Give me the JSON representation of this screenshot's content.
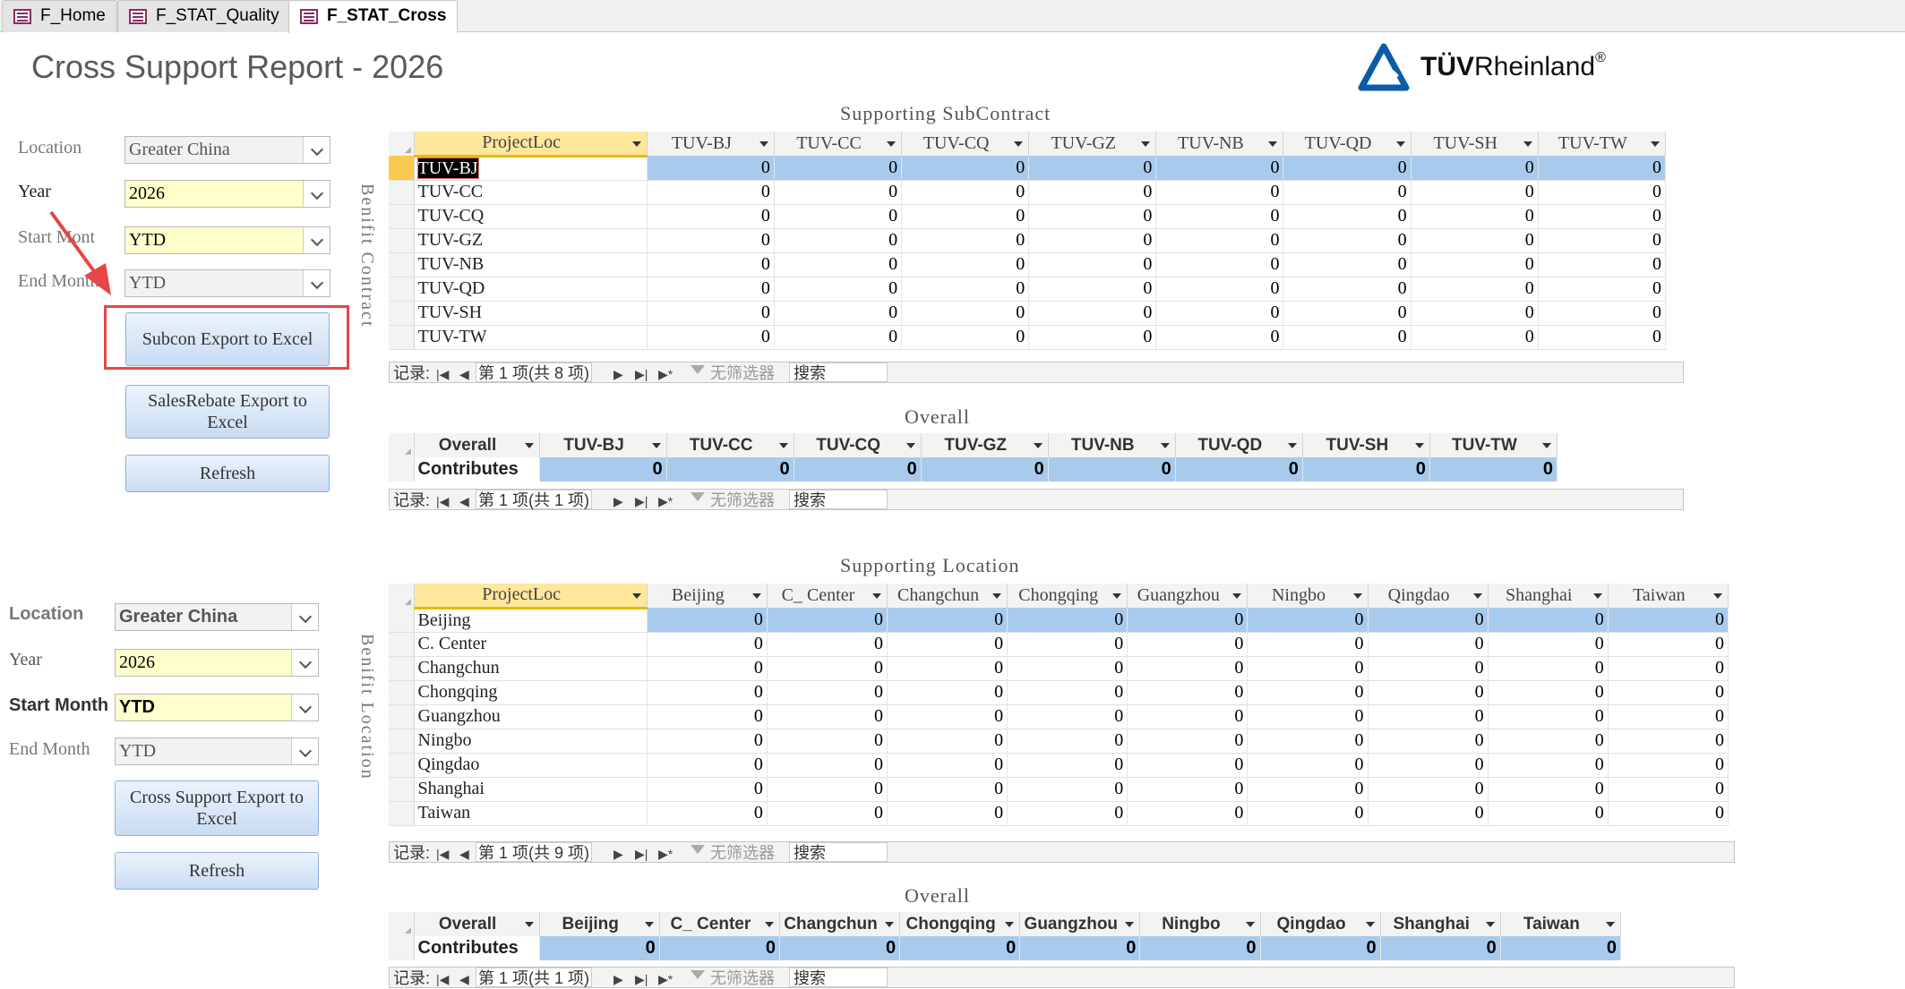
{
  "tabs": [
    {
      "label": "F_Home",
      "active": false
    },
    {
      "label": "F_STAT_Quality",
      "active": false
    },
    {
      "label": "F_STAT_Cross",
      "active": true
    }
  ],
  "header": {
    "title": "Cross Support Report -  2026",
    "logo_bold": "TÜV",
    "logo_text": "Rheinland",
    "logo_reg": "®",
    "logo_color": "#0a5ca8"
  },
  "form_top": {
    "location_label": "Location",
    "location_value": "Greater China",
    "year_label": "Year",
    "year_value": "2026",
    "start_label": "Start Mont",
    "start_value": "YTD",
    "end_label": "End Month",
    "end_value": "YTD",
    "subcon_button": "Subcon Export to Excel",
    "salesrebate_button": "SalesRebate Export to Excel",
    "refresh_button": "Refresh"
  },
  "form_bottom": {
    "location_label": "Location",
    "location_value": "Greater China",
    "year_label": "Year",
    "year_value": "2026",
    "start_label": "Start Month",
    "start_value": "YTD",
    "end_label": "End Month",
    "end_value": "YTD",
    "cross_button": "Cross Support Export to Excel",
    "refresh_button": "Refresh"
  },
  "captions": {
    "benifit_contract": "Benifit Contract",
    "benifit_location": "Benifit Location"
  },
  "subcontract": {
    "title": "Supporting SubContract",
    "columns": [
      "ProjectLoc",
      "TUV-BJ",
      "TUV-CC",
      "TUV-CQ",
      "TUV-GZ",
      "TUV-NB",
      "TUV-QD",
      "TUV-SH",
      "TUV-TW"
    ],
    "rows": [
      {
        "loc": "TUV-BJ",
        "values": [
          "0",
          "0",
          "0",
          "0",
          "0",
          "0",
          "0",
          "0"
        ]
      },
      {
        "loc": "TUV-CC",
        "values": [
          "0",
          "0",
          "0",
          "0",
          "0",
          "0",
          "0",
          "0"
        ]
      },
      {
        "loc": "TUV-CQ",
        "values": [
          "0",
          "0",
          "0",
          "0",
          "0",
          "0",
          "0",
          "0"
        ]
      },
      {
        "loc": "TUV-GZ",
        "values": [
          "0",
          "0",
          "0",
          "0",
          "0",
          "0",
          "0",
          "0"
        ]
      },
      {
        "loc": "TUV-NB",
        "values": [
          "0",
          "0",
          "0",
          "0",
          "0",
          "0",
          "0",
          "0"
        ]
      },
      {
        "loc": "TUV-QD",
        "values": [
          "0",
          "0",
          "0",
          "0",
          "0",
          "0",
          "0",
          "0"
        ]
      },
      {
        "loc": "TUV-SH",
        "values": [
          "0",
          "0",
          "0",
          "0",
          "0",
          "0",
          "0",
          "0"
        ]
      },
      {
        "loc": "TUV-TW",
        "values": [
          "0",
          "0",
          "0",
          "0",
          "0",
          "0",
          "0",
          "0"
        ]
      }
    ],
    "nav": {
      "record_label": "记录:",
      "position": "第 1 项(共 8 项)",
      "no_filter": "无筛选器",
      "search": "搜索"
    }
  },
  "overall1": {
    "title": "Overall",
    "columns": [
      "Overall",
      "TUV-BJ",
      "TUV-CC",
      "TUV-CQ",
      "TUV-GZ",
      "TUV-NB",
      "TUV-QD",
      "TUV-SH",
      "TUV-TW"
    ],
    "row_label": "Contributes",
    "values": [
      "0",
      "0",
      "0",
      "0",
      "0",
      "0",
      "0",
      "0"
    ],
    "nav": {
      "record_label": "记录:",
      "position": "第 1 项(共 1 项)",
      "no_filter": "无筛选器",
      "search": "搜索"
    }
  },
  "location": {
    "title": "Supporting Location",
    "columns": [
      "ProjectLoc",
      "Beijing",
      "C_ Center",
      "Changchun",
      "Chongqing",
      "Guangzhou",
      "Ningbo",
      "Qingdao",
      "Shanghai",
      "Taiwan"
    ],
    "rows": [
      {
        "loc": "Beijing",
        "values": [
          "0",
          "0",
          "0",
          "0",
          "0",
          "0",
          "0",
          "0",
          "0"
        ]
      },
      {
        "loc": "C. Center",
        "values": [
          "0",
          "0",
          "0",
          "0",
          "0",
          "0",
          "0",
          "0",
          "0"
        ]
      },
      {
        "loc": "Changchun",
        "values": [
          "0",
          "0",
          "0",
          "0",
          "0",
          "0",
          "0",
          "0",
          "0"
        ]
      },
      {
        "loc": "Chongqing",
        "values": [
          "0",
          "0",
          "0",
          "0",
          "0",
          "0",
          "0",
          "0",
          "0"
        ]
      },
      {
        "loc": "Guangzhou",
        "values": [
          "0",
          "0",
          "0",
          "0",
          "0",
          "0",
          "0",
          "0",
          "0"
        ]
      },
      {
        "loc": "Ningbo",
        "values": [
          "0",
          "0",
          "0",
          "0",
          "0",
          "0",
          "0",
          "0",
          "0"
        ]
      },
      {
        "loc": "Qingdao",
        "values": [
          "0",
          "0",
          "0",
          "0",
          "0",
          "0",
          "0",
          "0",
          "0"
        ]
      },
      {
        "loc": "Shanghai",
        "values": [
          "0",
          "0",
          "0",
          "0",
          "0",
          "0",
          "0",
          "0",
          "0"
        ]
      },
      {
        "loc": "Taiwan",
        "values": [
          "0",
          "0",
          "0",
          "0",
          "0",
          "0",
          "0",
          "0",
          "0"
        ]
      }
    ],
    "nav": {
      "record_label": "记录:",
      "position": "第 1 项(共 9 项)",
      "no_filter": "无筛选器",
      "search": "搜索"
    }
  },
  "overall2": {
    "title": "Overall",
    "columns": [
      "Overall",
      "Beijing",
      "C_ Center",
      "Changchun",
      "Chongqing",
      "Guangzhou",
      "Ningbo",
      "Qingdao",
      "Shanghai",
      "Taiwan"
    ],
    "row_label": "Contributes",
    "values": [
      "0",
      "0",
      "0",
      "0",
      "0",
      "0",
      "0",
      "0",
      "0"
    ],
    "nav": {
      "record_label": "记录:",
      "position": "第 1 项(共 1 项)",
      "no_filter": "无筛选器",
      "search": "搜索"
    }
  }
}
